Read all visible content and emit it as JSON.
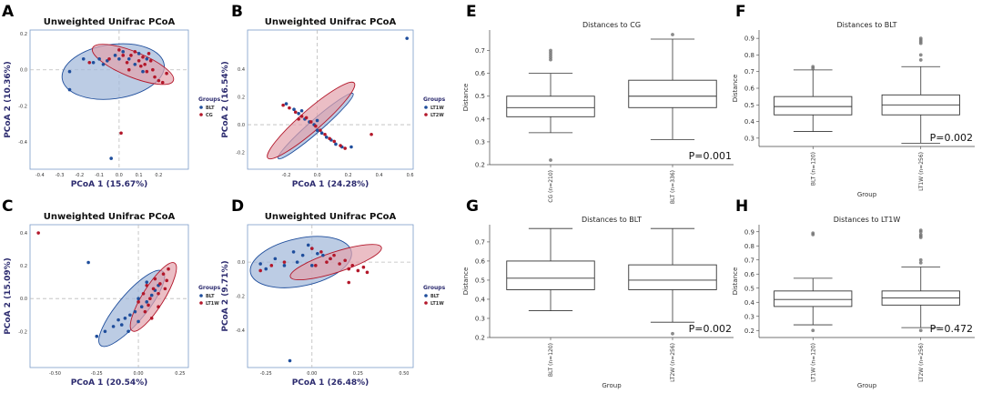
{
  "colors": {
    "blue": "#1f4e9c",
    "red": "#b3172a",
    "blue_fill": "#9fb7d9",
    "red_fill": "#e3a2ad",
    "axis_label": "#2b2a6e"
  },
  "chart_data": [
    {
      "id": "A",
      "type": "scatter",
      "title": "Unweighted Unifrac PCoA",
      "xlabel": "PCoA 1 (15.67%)",
      "ylabel": "PCoA 2 (10.36%)",
      "xlim": [
        -0.45,
        0.35
      ],
      "ylim": [
        -0.55,
        0.22
      ],
      "xticks": [
        "-0.4",
        "-0.3",
        "-0.2",
        "-0.1",
        "0.0",
        "0.1",
        "0.2"
      ],
      "xtick_values": [
        -0.4,
        -0.3,
        -0.2,
        -0.1,
        0.0,
        0.1,
        0.2
      ],
      "yticks": [
        "0.2",
        "0.0",
        "-0.2",
        "-0.4"
      ],
      "ytick_values": [
        0.2,
        0.0,
        -0.2,
        -0.4
      ],
      "legend_title": "Groups",
      "series": [
        {
          "name": "BLT",
          "color": "blue",
          "points": [
            [
              -0.25,
              -0.01
            ],
            [
              -0.25,
              -0.11
            ],
            [
              -0.18,
              0.06
            ],
            [
              -0.13,
              0.04
            ],
            [
              -0.1,
              0.06
            ],
            [
              -0.08,
              0.03
            ],
            [
              -0.06,
              0.05
            ],
            [
              -0.02,
              0.08
            ],
            [
              0.0,
              0.06
            ],
            [
              0.02,
              0.1
            ],
            [
              0.05,
              0.06
            ],
            [
              0.08,
              0.03
            ],
            [
              0.1,
              0.09
            ],
            [
              0.12,
              -0.01
            ],
            [
              0.14,
              0.06
            ],
            [
              -0.04,
              -0.49
            ]
          ],
          "ellipse": {
            "cx": -0.03,
            "cy": -0.01,
            "rx": 0.26,
            "ry": 0.15,
            "angle_deg": -8
          }
        },
        {
          "name": "CG",
          "color": "red",
          "points": [
            [
              -0.15,
              0.04
            ],
            [
              -0.05,
              0.06
            ],
            [
              0.0,
              0.11
            ],
            [
              0.02,
              0.08
            ],
            [
              0.04,
              0.04
            ],
            [
              0.06,
              0.08
            ],
            [
              0.08,
              0.1
            ],
            [
              0.1,
              0.05
            ],
            [
              0.11,
              0.02
            ],
            [
              0.12,
              0.07
            ],
            [
              0.13,
              0.03
            ],
            [
              0.14,
              -0.01
            ],
            [
              0.16,
              0.05
            ],
            [
              0.17,
              0.0
            ],
            [
              0.18,
              -0.04
            ],
            [
              0.2,
              -0.06
            ],
            [
              0.22,
              -0.07
            ],
            [
              0.24,
              -0.02
            ],
            [
              0.05,
              0.0
            ],
            [
              0.15,
              0.09
            ],
            [
              0.01,
              -0.35
            ]
          ],
          "ellipse": {
            "cx": 0.07,
            "cy": 0.03,
            "rx": 0.22,
            "ry": 0.07,
            "angle_deg": 22
          }
        }
      ]
    },
    {
      "id": "B",
      "type": "scatter",
      "title": "Unweighted Unifrac PCoA",
      "xlabel": "PCoA 1 (24.28%)",
      "ylabel": "PCoA 2 (16.54%)",
      "xlim": [
        -0.45,
        0.62
      ],
      "ylim": [
        -0.32,
        0.68
      ],
      "xticks": [
        "-0.2",
        "0.0",
        "0.2",
        "0.4",
        "0.6"
      ],
      "xtick_values": [
        -0.2,
        0.0,
        0.2,
        0.4,
        0.6
      ],
      "yticks": [
        "0.4",
        "0.2",
        "0.0",
        "-0.2"
      ],
      "ytick_values": [
        0.4,
        0.2,
        0.0,
        -0.2
      ],
      "legend_title": "Groups",
      "series": [
        {
          "name": "LT1W",
          "color": "blue",
          "points": [
            [
              -0.2,
              0.15
            ],
            [
              -0.15,
              0.11
            ],
            [
              -0.12,
              0.08
            ],
            [
              -0.08,
              0.04
            ],
            [
              -0.05,
              0.02
            ],
            [
              -0.02,
              0.0
            ],
            [
              0.0,
              -0.04
            ],
            [
              0.03,
              -0.06
            ],
            [
              0.06,
              -0.09
            ],
            [
              0.09,
              -0.11
            ],
            [
              0.12,
              -0.14
            ],
            [
              0.16,
              -0.16
            ],
            [
              0.22,
              -0.16
            ],
            [
              -0.1,
              0.1
            ],
            [
              0.0,
              0.03
            ],
            [
              0.58,
              0.62
            ]
          ],
          "ellipse": {
            "cx": -0.01,
            "cy": -0.01,
            "rx": 0.32,
            "ry": 0.045,
            "angle_deg": -41
          }
        },
        {
          "name": "LT2W",
          "color": "red",
          "points": [
            [
              -0.22,
              0.14
            ],
            [
              -0.18,
              0.12
            ],
            [
              -0.14,
              0.09
            ],
            [
              -0.1,
              0.06
            ],
            [
              -0.07,
              0.05
            ],
            [
              -0.04,
              0.02
            ],
            [
              -0.01,
              -0.01
            ],
            [
              0.02,
              -0.04
            ],
            [
              0.05,
              -0.07
            ],
            [
              0.08,
              -0.1
            ],
            [
              0.11,
              -0.12
            ],
            [
              0.15,
              -0.15
            ],
            [
              0.18,
              -0.17
            ],
            [
              -0.12,
              0.04
            ],
            [
              0.35,
              -0.07
            ]
          ],
          "ellipse": {
            "cx": -0.04,
            "cy": 0.03,
            "rx": 0.37,
            "ry": 0.075,
            "angle_deg": -41
          }
        }
      ]
    },
    {
      "id": "C",
      "type": "scatter",
      "title": "Unweighted Unifrac PCoA",
      "xlabel": "PCoA 1 (20.54%)",
      "ylabel": "PCoA 2 (15.09%)",
      "xlim": [
        -0.65,
        0.3
      ],
      "ylim": [
        -0.42,
        0.45
      ],
      "xticks": [
        "-0.50",
        "-0.25",
        "0.00",
        "0.25"
      ],
      "xtick_values": [
        -0.5,
        -0.25,
        0.0,
        0.25
      ],
      "yticks": [
        "0.4",
        "0.2",
        "0.0",
        "-0.2"
      ],
      "ytick_values": [
        0.4,
        0.2,
        0.0,
        -0.2
      ],
      "legend_title": "Groups",
      "series": [
        {
          "name": "BLT",
          "color": "blue",
          "points": [
            [
              -0.3,
              0.22
            ],
            [
              -0.25,
              -0.23
            ],
            [
              -0.2,
              -0.2
            ],
            [
              -0.15,
              -0.17
            ],
            [
              -0.12,
              -0.13
            ],
            [
              -0.1,
              -0.16
            ],
            [
              -0.08,
              -0.12
            ],
            [
              -0.05,
              -0.1
            ],
            [
              -0.02,
              -0.08
            ],
            [
              0.0,
              0.0
            ],
            [
              0.02,
              -0.05
            ],
            [
              0.05,
              -0.02
            ],
            [
              0.08,
              0.02
            ],
            [
              0.1,
              0.05
            ],
            [
              0.12,
              0.08
            ],
            [
              0.05,
              0.1
            ],
            [
              -0.06,
              -0.2
            ],
            [
              0.0,
              -0.14
            ]
          ],
          "ellipse": {
            "cx": -0.04,
            "cy": -0.06,
            "rx": 0.29,
            "ry": 0.085,
            "angle_deg": -50
          }
        },
        {
          "name": "LT1W",
          "color": "red",
          "points": [
            [
              -0.6,
              0.4
            ],
            [
              0.0,
              -0.02
            ],
            [
              0.03,
              0.03
            ],
            [
              0.05,
              0.08
            ],
            [
              0.07,
              0.0
            ],
            [
              0.09,
              0.06
            ],
            [
              0.1,
              0.12
            ],
            [
              0.12,
              0.03
            ],
            [
              0.13,
              0.09
            ],
            [
              0.15,
              0.15
            ],
            [
              0.16,
              0.06
            ],
            [
              0.17,
              0.11
            ],
            [
              0.04,
              -0.08
            ],
            [
              0.08,
              -0.12
            ],
            [
              0.12,
              -0.05
            ],
            [
              0.18,
              0.18
            ],
            [
              0.06,
              -0.04
            ]
          ],
          "ellipse": {
            "cx": 0.09,
            "cy": 0.01,
            "rx": 0.24,
            "ry": 0.065,
            "angle_deg": -58
          }
        }
      ]
    },
    {
      "id": "D",
      "type": "scatter",
      "title": "Unweighted Unifrac PCoA",
      "xlabel": "PCoA 1 (26.48%)",
      "ylabel": "PCoA 2 (9.71%)",
      "xlim": [
        -0.35,
        0.55
      ],
      "ylim": [
        -0.62,
        0.22
      ],
      "xticks": [
        "-0.25",
        "0.00",
        "0.25",
        "0.50"
      ],
      "xtick_values": [
        -0.25,
        0.0,
        0.25,
        0.5
      ],
      "yticks": [
        "0.0",
        "-0.2",
        "-0.4"
      ],
      "ytick_values": [
        0.0,
        -0.2,
        -0.4
      ],
      "legend_title": "Groups",
      "series": [
        {
          "name": "BLT",
          "color": "blue",
          "points": [
            [
              -0.28,
              -0.01
            ],
            [
              -0.25,
              -0.04
            ],
            [
              -0.2,
              0.02
            ],
            [
              -0.15,
              -0.02
            ],
            [
              -0.1,
              0.06
            ],
            [
              -0.08,
              0.0
            ],
            [
              -0.05,
              0.04
            ],
            [
              -0.02,
              0.1
            ],
            [
              0.0,
              0.08
            ],
            [
              0.03,
              0.05
            ],
            [
              0.06,
              0.04
            ],
            [
              0.1,
              0.02
            ],
            [
              -0.12,
              -0.58
            ],
            [
              0.0,
              -0.02
            ]
          ],
          "ellipse": {
            "cx": -0.06,
            "cy": 0.0,
            "rx": 0.28,
            "ry": 0.14,
            "angle_deg": -12
          }
        },
        {
          "name": "LT1W",
          "color": "red",
          "points": [
            [
              -0.28,
              -0.05
            ],
            [
              -0.22,
              -0.02
            ],
            [
              -0.15,
              0.0
            ],
            [
              0.0,
              0.08
            ],
            [
              0.05,
              0.06
            ],
            [
              0.1,
              0.02
            ],
            [
              0.15,
              -0.01
            ],
            [
              0.18,
              0.01
            ],
            [
              0.2,
              -0.04
            ],
            [
              0.22,
              -0.02
            ],
            [
              0.25,
              -0.05
            ],
            [
              0.28,
              -0.03
            ],
            [
              0.3,
              -0.06
            ],
            [
              0.12,
              0.04
            ],
            [
              0.08,
              0.0
            ],
            [
              0.2,
              -0.12
            ],
            [
              0.02,
              -0.02
            ]
          ],
          "ellipse": {
            "cx": 0.13,
            "cy": 0.0,
            "rx": 0.26,
            "ry": 0.06,
            "angle_deg": -18
          }
        }
      ]
    },
    {
      "id": "E",
      "type": "box",
      "title": "Distances to CG",
      "xlabel": "",
      "ylabel": "Distance",
      "ylim": [
        0.2,
        0.79
      ],
      "yticks": [
        "0.2",
        "0.3",
        "0.4",
        "0.5",
        "0.6",
        "0.7"
      ],
      "ytick_values": [
        0.2,
        0.3,
        0.4,
        0.5,
        0.6,
        0.7
      ],
      "pvalue": "P=0.001",
      "boxes": [
        {
          "label": "CG (n=210)",
          "whisker_low": 0.34,
          "q1": 0.41,
          "median": 0.45,
          "q3": 0.5,
          "whisker_high": 0.6,
          "outliers": [
            0.66,
            0.67,
            0.68,
            0.69,
            0.7,
            0.22
          ]
        },
        {
          "label": "BLT (n=336)",
          "whisker_low": 0.31,
          "q1": 0.45,
          "median": 0.5,
          "q3": 0.57,
          "whisker_high": 0.75,
          "outliers": [
            0.77
          ]
        }
      ]
    },
    {
      "id": "F",
      "type": "box",
      "title": "Distances to BLT",
      "xlabel": "Group",
      "ylabel": "Distance",
      "ylim": [
        0.25,
        0.95
      ],
      "yticks": [
        "0.3",
        "0.4",
        "0.5",
        "0.6",
        "0.7",
        "0.8",
        "0.9"
      ],
      "ytick_values": [
        0.3,
        0.4,
        0.5,
        0.6,
        0.7,
        0.8,
        0.9
      ],
      "pvalue": "P=0.002",
      "boxes": [
        {
          "label": "BLT (n=120)",
          "whisker_low": 0.34,
          "q1": 0.44,
          "median": 0.49,
          "q3": 0.55,
          "whisker_high": 0.71,
          "outliers": [
            0.72,
            0.73
          ]
        },
        {
          "label": "LT1W (n=256)",
          "whisker_low": 0.27,
          "q1": 0.44,
          "median": 0.5,
          "q3": 0.56,
          "whisker_high": 0.73,
          "outliers": [
            0.77,
            0.8,
            0.87,
            0.88,
            0.89,
            0.9
          ]
        }
      ]
    },
    {
      "id": "G",
      "type": "box",
      "title": "Distances to BLT",
      "xlabel": "Group",
      "ylabel": "Distance",
      "ylim": [
        0.2,
        0.79
      ],
      "yticks": [
        "0.2",
        "0.3",
        "0.4",
        "0.5",
        "0.6",
        "0.7"
      ],
      "ytick_values": [
        0.2,
        0.3,
        0.4,
        0.5,
        0.6,
        0.7
      ],
      "pvalue": "P=0.002",
      "boxes": [
        {
          "label": "BLT (n=120)",
          "whisker_low": 0.34,
          "q1": 0.45,
          "median": 0.51,
          "q3": 0.6,
          "whisker_high": 0.77,
          "outliers": []
        },
        {
          "label": "LT2W (n=256)",
          "whisker_low": 0.28,
          "q1": 0.45,
          "median": 0.5,
          "q3": 0.58,
          "whisker_high": 0.77,
          "outliers": [
            0.22
          ]
        }
      ]
    },
    {
      "id": "H",
      "type": "box",
      "title": "Distances to LT1W",
      "xlabel": "Group",
      "ylabel": "Distance",
      "ylim": [
        0.15,
        0.95
      ],
      "yticks": [
        "0.2",
        "0.3",
        "0.4",
        "0.5",
        "0.6",
        "0.7",
        "0.8",
        "0.9"
      ],
      "ytick_values": [
        0.2,
        0.3,
        0.4,
        0.5,
        0.6,
        0.7,
        0.8,
        0.9
      ],
      "pvalue": "P=0.472",
      "boxes": [
        {
          "label": "LT1W (n=120)",
          "whisker_low": 0.24,
          "q1": 0.37,
          "median": 0.42,
          "q3": 0.48,
          "whisker_high": 0.57,
          "outliers": [
            0.88,
            0.89,
            0.2
          ]
        },
        {
          "label": "LT2W (n=256)",
          "whisker_low": 0.22,
          "q1": 0.38,
          "median": 0.43,
          "q3": 0.48,
          "whisker_high": 0.65,
          "outliers": [
            0.68,
            0.7,
            0.86,
            0.87,
            0.88,
            0.9,
            0.91,
            0.2
          ]
        }
      ]
    }
  ]
}
